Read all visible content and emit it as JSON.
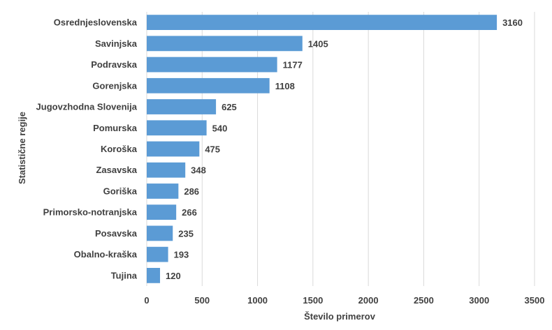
{
  "chart_data": {
    "type": "bar",
    "orientation": "horizontal",
    "categories": [
      "Osrednjeslovenska",
      "Savinjska",
      "Podravska",
      "Gorenjska",
      "Jugovzhodna Slovenija",
      "Pomurska",
      "Koroška",
      "Zasavska",
      "Goriška",
      "Primorsko-notranjska",
      "Posavska",
      "Obalno-kraška",
      "Tujina"
    ],
    "values": [
      3160,
      1405,
      1177,
      1108,
      625,
      540,
      475,
      348,
      286,
      266,
      235,
      193,
      120
    ],
    "xlabel": "Število primerov",
    "ylabel": "Statistične regije",
    "xlim": [
      0,
      3500
    ],
    "xticks": [
      0,
      500,
      1000,
      1500,
      2000,
      2500,
      3000,
      3500
    ],
    "grid": "vertical",
    "legend": "none",
    "bar_color": "#5b9bd5"
  }
}
